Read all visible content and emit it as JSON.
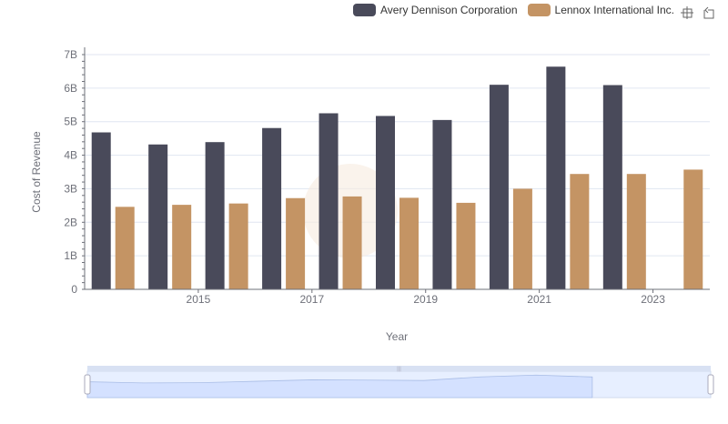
{
  "legend": {
    "series": [
      {
        "name": "Avery Dennison Corporation",
        "color": "#494a5a"
      },
      {
        "name": "Lennox International Inc.",
        "color": "#c49464"
      }
    ]
  },
  "toolbox": {
    "icons": [
      "zoom-icon",
      "restore-icon"
    ]
  },
  "chart_data": {
    "type": "bar",
    "x": [
      2014,
      2015,
      2016,
      2017,
      2018,
      2019,
      2020,
      2021,
      2022,
      2023,
      2024
    ],
    "x_tick_labels": [
      "2015",
      "2017",
      "2019",
      "2021",
      "2023"
    ],
    "series": [
      {
        "name": "Avery Dennison Corporation",
        "color": "#494a5a",
        "values": [
          4.68,
          4.32,
          4.39,
          4.81,
          5.25,
          5.17,
          5.05,
          6.1,
          6.64,
          6.09,
          null
        ]
      },
      {
        "name": "Lennox International Inc.",
        "color": "#c49464",
        "values": [
          2.46,
          2.52,
          2.56,
          2.72,
          2.77,
          2.73,
          2.58,
          3.0,
          3.44,
          3.44,
          3.57
        ]
      }
    ],
    "xlabel": "Year",
    "ylabel": "Cost of Revenue",
    "ylim": [
      0,
      7
    ],
    "y_tick_labels": [
      "0",
      "1B",
      "2B",
      "3B",
      "4B",
      "5B",
      "6B",
      "7B"
    ],
    "grid": true,
    "legend_position": "top-right",
    "data_zoom": {
      "type": "slider",
      "range_percent": [
        0,
        100
      ],
      "fill": "#d4e1ff"
    }
  }
}
